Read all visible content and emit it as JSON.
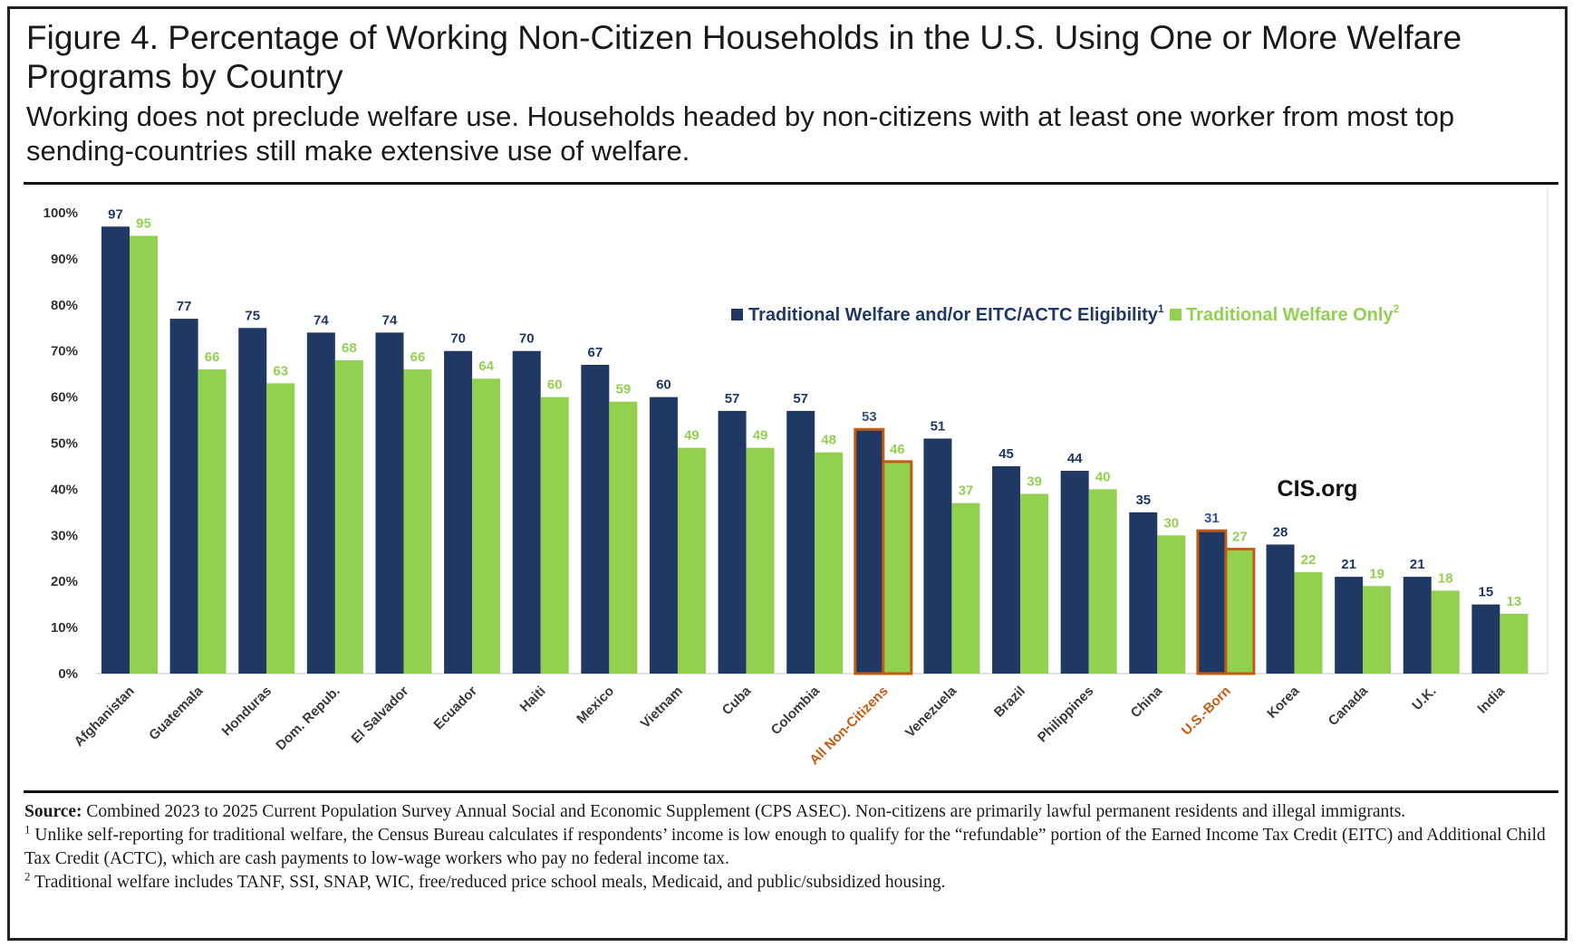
{
  "header": {
    "title": "Figure 4. Percentage of Working Non-Citizen Households in the U.S. Using One or More Welfare Programs by Country",
    "subtitle": "Working does not preclude welfare use. Households headed by non-citizens with at least one worker from most top sending-countries still make extensive use of welfare."
  },
  "chart_data": {
    "type": "bar",
    "categories": [
      "Afghanistan",
      "Guatemala",
      "Honduras",
      "Dom. Repub.",
      "El Salvador",
      "Ecuador",
      "Haiti",
      "Mexico",
      "Vietnam",
      "Cuba",
      "Colombia",
      "All Non-Citizens",
      "Venezuela",
      "Brazil",
      "Philippines",
      "China",
      "U.S.-Born",
      "Korea",
      "Canada",
      "U.K.",
      "India"
    ],
    "highlighted_categories": [
      "All Non-Citizens",
      "U.S.-Born"
    ],
    "series": [
      {
        "name": "Traditional Welfare and/or EITC/ACTC Eligibility",
        "footnote": "1",
        "color": "#1f3864",
        "values": [
          97,
          77,
          75,
          74,
          74,
          70,
          70,
          67,
          60,
          57,
          57,
          53,
          51,
          45,
          44,
          35,
          31,
          28,
          21,
          21,
          15
        ]
      },
      {
        "name": "Traditional Welfare Only",
        "footnote": "2",
        "color": "#92d050",
        "values": [
          95,
          66,
          63,
          68,
          66,
          64,
          60,
          59,
          49,
          49,
          48,
          46,
          37,
          39,
          40,
          30,
          27,
          22,
          19,
          18,
          13
        ]
      }
    ],
    "ylim": [
      0,
      100
    ],
    "yticks": [
      "0%",
      "10%",
      "20%",
      "30%",
      "40%",
      "50%",
      "60%",
      "70%",
      "80%",
      "90%",
      "100%"
    ],
    "legend_position": "right, mid-height",
    "highlight_color": "#c55a11",
    "label_color_highlighted": "#2f5597",
    "watermark": "CIS.org",
    "grid": false
  },
  "footer": {
    "source_label": "Source:",
    "source_text": "Combined 2023 to 2025 Current Population Survey Annual Social and Economic Supplement (CPS ASEC). Non-citizens are primarily lawful permanent residents and illegal immigrants.",
    "note1_mark": "1",
    "note1": "Unlike self-reporting for traditional welfare, the Census Bureau calculates if respondents’ income is low enough to qualify for the “refundable” portion of the Earned Income Tax Credit (EITC) and Additional Child Tax Credit (ACTC), which are cash payments to low-wage workers who pay no federal income tax.",
    "note2_mark": "2",
    "note2": "Traditional welfare includes TANF, SSI, SNAP, WIC, free/reduced price school meals, Medicaid, and public/subsidized housing."
  }
}
